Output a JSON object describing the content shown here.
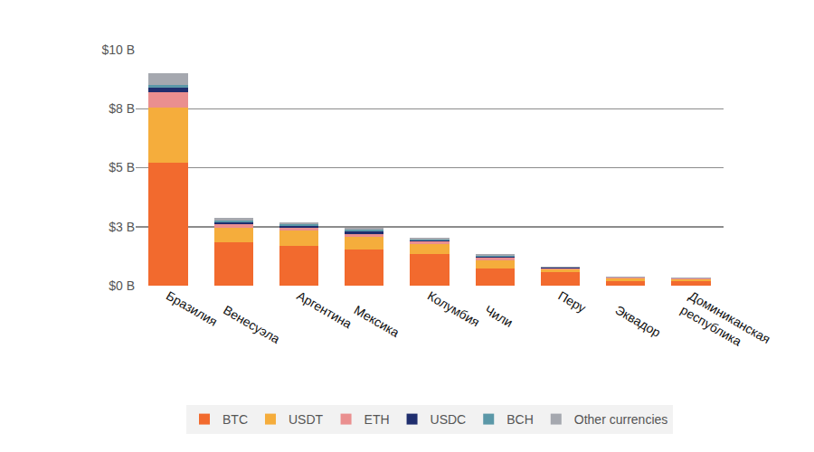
{
  "chart_data": {
    "type": "bar",
    "stacked": true,
    "grid": true,
    "legend": "bottom",
    "categories": [
      "Бразилия",
      "Венесуэла",
      "Аргентина",
      "Мексика",
      "Колумбия",
      "Чили",
      "Перу",
      "Эквадор",
      "Доминиканская республика"
    ],
    "ylim": [
      0,
      10
    ],
    "yticks": [
      {
        "value": 0,
        "label": "$0 B"
      },
      {
        "value": 2.5,
        "label": "$3 B"
      },
      {
        "value": 5,
        "label": "$5 B"
      },
      {
        "value": 7.5,
        "label": "$8 B"
      },
      {
        "value": 10,
        "label": "$10 B"
      }
    ],
    "series": [
      {
        "name": "BTC",
        "color": "#f26a2e",
        "values": [
          5.2,
          1.85,
          1.69,
          1.54,
          1.35,
          0.73,
          0.58,
          0.19,
          0.19
        ]
      },
      {
        "name": "USDT",
        "color": "#f5ad3c",
        "values": [
          2.35,
          0.6,
          0.65,
          0.54,
          0.42,
          0.35,
          0.11,
          0.12,
          0.08
        ]
      },
      {
        "name": "ETH",
        "color": "#ea8f8f",
        "values": [
          0.65,
          0.15,
          0.12,
          0.12,
          0.12,
          0.12,
          0.04,
          0.02,
          0.02
        ]
      },
      {
        "name": "USDC",
        "color": "#1f2e6e",
        "values": [
          0.19,
          0.08,
          0.08,
          0.08,
          0.04,
          0.04,
          0.02,
          0.01,
          0.01
        ]
      },
      {
        "name": "BCH",
        "color": "#5b98a8",
        "values": [
          0.12,
          0.08,
          0.08,
          0.08,
          0.04,
          0.04,
          0.02,
          0.01,
          0.02
        ]
      },
      {
        "name": "Other currencies",
        "color": "#a5a8af",
        "values": [
          0.5,
          0.12,
          0.08,
          0.08,
          0.08,
          0.08,
          0.04,
          0.02,
          0.03
        ]
      }
    ]
  }
}
